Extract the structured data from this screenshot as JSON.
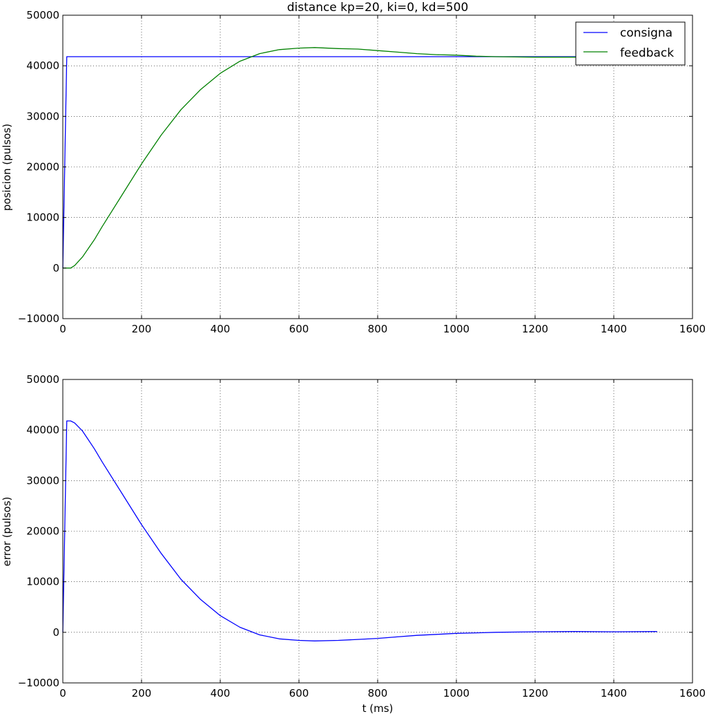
{
  "chart_data": [
    {
      "type": "line",
      "title": "distance kp=20, ki=0, kd=500",
      "xlabel": "",
      "ylabel": "posicion (pulsos)",
      "xlim": [
        0,
        1600
      ],
      "ylim": [
        -10000,
        50000
      ],
      "xticks": [
        0,
        200,
        400,
        600,
        800,
        1000,
        1200,
        1400,
        1600
      ],
      "yticks": [
        -10000,
        0,
        10000,
        20000,
        30000,
        40000,
        50000
      ],
      "xtick_labels": [
        "0",
        "200",
        "400",
        "600",
        "800",
        "1000",
        "1200",
        "1400",
        "1600"
      ],
      "ytick_labels": [
        "−10000",
        "0",
        "10000",
        "20000",
        "30000",
        "40000",
        "50000"
      ],
      "grid": true,
      "legend": "top-right",
      "series": [
        {
          "name": "consigna",
          "color": "#0000ff",
          "points": [
            [
              0,
              0
            ],
            [
              10,
              41800
            ],
            [
              1510,
              41800
            ]
          ]
        },
        {
          "name": "feedback",
          "color": "#008000",
          "points": [
            [
              0,
              0
            ],
            [
              5,
              0
            ],
            [
              20,
              0
            ],
            [
              30,
              500
            ],
            [
              50,
              2200
            ],
            [
              80,
              5600
            ],
            [
              100,
              8200
            ],
            [
              150,
              14400
            ],
            [
              200,
              20600
            ],
            [
              250,
              26300
            ],
            [
              300,
              31300
            ],
            [
              350,
              35300
            ],
            [
              400,
              38500
            ],
            [
              450,
              40900
            ],
            [
              500,
              42400
            ],
            [
              550,
              43200
            ],
            [
              600,
              43500
            ],
            [
              640,
              43600
            ],
            [
              700,
              43400
            ],
            [
              750,
              43300
            ],
            [
              800,
              43000
            ],
            [
              850,
              42700
            ],
            [
              900,
              42400
            ],
            [
              950,
              42200
            ],
            [
              1000,
              42100
            ],
            [
              1050,
              41900
            ],
            [
              1100,
              41800
            ],
            [
              1200,
              41700
            ],
            [
              1300,
              41700
            ],
            [
              1400,
              41700
            ],
            [
              1510,
              41700
            ]
          ]
        }
      ]
    },
    {
      "type": "line",
      "title": "",
      "xlabel": "t (ms)",
      "ylabel": "error (pulsos)",
      "xlim": [
        0,
        1600
      ],
      "ylim": [
        -10000,
        50000
      ],
      "xticks": [
        0,
        200,
        400,
        600,
        800,
        1000,
        1200,
        1400,
        1600
      ],
      "yticks": [
        -10000,
        0,
        10000,
        20000,
        30000,
        40000,
        50000
      ],
      "xtick_labels": [
        "0",
        "200",
        "400",
        "600",
        "800",
        "1000",
        "1200",
        "1400",
        "1600"
      ],
      "ytick_labels": [
        "−10000",
        "0",
        "10000",
        "20000",
        "30000",
        "40000",
        "50000"
      ],
      "grid": true,
      "series": [
        {
          "name": "",
          "color": "#0000ff",
          "points": [
            [
              0,
              0
            ],
            [
              10,
              41800
            ],
            [
              20,
              41800
            ],
            [
              30,
              41400
            ],
            [
              50,
              39800
            ],
            [
              80,
              36300
            ],
            [
              100,
              33700
            ],
            [
              150,
              27500
            ],
            [
              200,
              21300
            ],
            [
              250,
              15600
            ],
            [
              300,
              10500
            ],
            [
              350,
              6500
            ],
            [
              400,
              3300
            ],
            [
              450,
              1000
            ],
            [
              500,
              -500
            ],
            [
              550,
              -1300
            ],
            [
              600,
              -1600
            ],
            [
              640,
              -1700
            ],
            [
              700,
              -1600
            ],
            [
              750,
              -1400
            ],
            [
              800,
              -1200
            ],
            [
              850,
              -900
            ],
            [
              900,
              -600
            ],
            [
              950,
              -400
            ],
            [
              1000,
              -200
            ],
            [
              1050,
              -100
            ],
            [
              1100,
              0
            ],
            [
              1200,
              100
            ],
            [
              1300,
              150
            ],
            [
              1400,
              100
            ],
            [
              1510,
              150
            ]
          ]
        }
      ]
    }
  ]
}
